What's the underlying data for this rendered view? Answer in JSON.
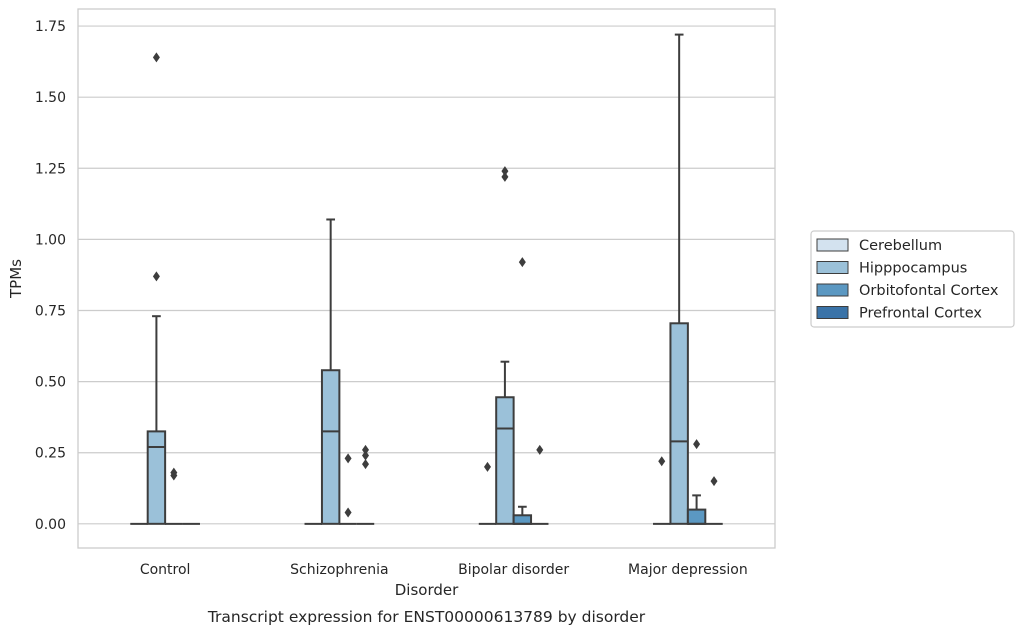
{
  "chart_data": {
    "type": "boxplot",
    "xlabel": "Disorder",
    "ylabel": "TPMs",
    "caption": "Transcript expression for ENST00000613789 by disorder",
    "ylim": [
      -0.085,
      1.81
    ],
    "yticks": [
      "0.00",
      "0.25",
      "0.50",
      "0.75",
      "1.00",
      "1.25",
      "1.50",
      "1.75"
    ],
    "grid": "horizontal",
    "legend_position": "right",
    "categories": [
      "Control",
      "Schizophrenia",
      "Bipolar disorder",
      "Major depression"
    ],
    "series": [
      {
        "name": "Cerebellum",
        "color": "#d3e2ef",
        "boxes": [
          {
            "min": 0,
            "q1": 0,
            "median": 0,
            "q3": 0,
            "max": 0,
            "outliers": []
          },
          {
            "min": 0,
            "q1": 0,
            "median": 0,
            "q3": 0,
            "max": 0,
            "outliers": []
          },
          {
            "min": 0,
            "q1": 0,
            "median": 0,
            "q3": 0,
            "max": 0,
            "outliers": [
              0.2
            ]
          },
          {
            "min": 0,
            "q1": 0,
            "median": 0,
            "q3": 0,
            "max": 0,
            "outliers": [
              0.22
            ]
          }
        ]
      },
      {
        "name": "Hipppocampus",
        "color": "#9bc1d9",
        "boxes": [
          {
            "min": 0,
            "q1": 0,
            "median": 0.27,
            "q3": 0.325,
            "max": 0.73,
            "outliers": [
              0.87,
              1.64
            ]
          },
          {
            "min": 0,
            "q1": 0,
            "median": 0.325,
            "q3": 0.54,
            "max": 1.07,
            "outliers": []
          },
          {
            "min": 0,
            "q1": 0,
            "median": 0.335,
            "q3": 0.445,
            "max": 0.57,
            "outliers": [
              1.22,
              1.24
            ]
          },
          {
            "min": 0,
            "q1": 0,
            "median": 0.29,
            "q3": 0.705,
            "max": 1.72,
            "outliers": []
          }
        ]
      },
      {
        "name": "Orbitofontal Cortex",
        "color": "#5b98c2",
        "boxes": [
          {
            "min": 0,
            "q1": 0,
            "median": 0,
            "q3": 0,
            "max": 0,
            "outliers": [
              0.17,
              0.18
            ]
          },
          {
            "min": 0,
            "q1": 0,
            "median": 0,
            "q3": 0,
            "max": 0,
            "outliers": [
              0.04,
              0.23
            ]
          },
          {
            "min": 0,
            "q1": 0,
            "median": 0,
            "q3": 0.03,
            "max": 0.06,
            "outliers": [
              0.92
            ]
          },
          {
            "min": 0,
            "q1": 0,
            "median": 0,
            "q3": 0.05,
            "max": 0.1,
            "outliers": [
              0.28
            ]
          }
        ]
      },
      {
        "name": "Prefrontal Cortex",
        "color": "#3a73a8",
        "boxes": [
          {
            "min": 0,
            "q1": 0,
            "median": 0,
            "q3": 0,
            "max": 0,
            "outliers": []
          },
          {
            "min": 0,
            "q1": 0,
            "median": 0,
            "q3": 0,
            "max": 0,
            "outliers": [
              0.21,
              0.24,
              0.26
            ]
          },
          {
            "min": 0,
            "q1": 0,
            "median": 0,
            "q3": 0,
            "max": 0,
            "outliers": [
              0.26
            ]
          },
          {
            "min": 0,
            "q1": 0,
            "median": 0,
            "q3": 0,
            "max": 0,
            "outliers": [
              0.15
            ]
          }
        ]
      }
    ]
  }
}
